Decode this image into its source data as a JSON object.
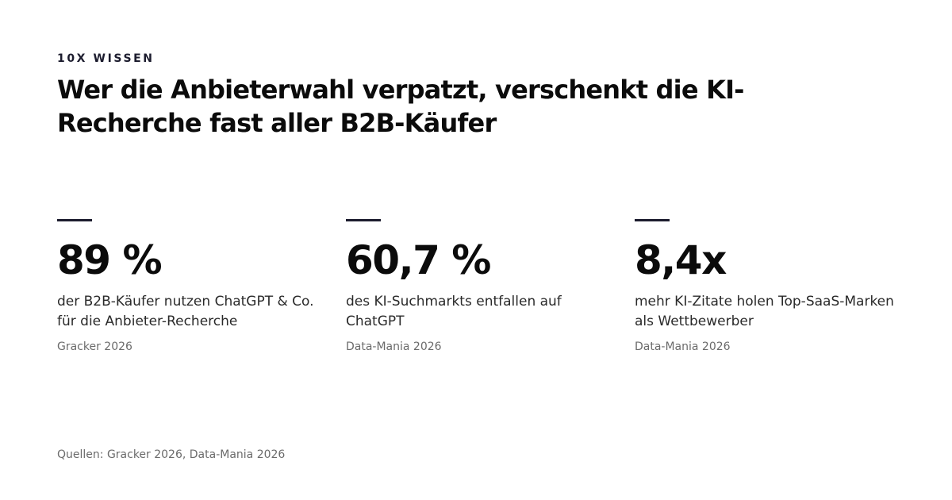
{
  "header": {
    "eyebrow": "10X WISSEN",
    "title": "Wer die Anbieterwahl verpatzt, verschenkt die KI-Recherche fast aller B2B-Käufer"
  },
  "stats": [
    {
      "value": "89 %",
      "description": "der B2B-Käufer nutzen ChatGPT & Co. für die Anbieter-Recherche",
      "source": "Gracker 2026"
    },
    {
      "value": "60,7 %",
      "description": "des KI-Suchmarkts entfallen auf ChatGPT",
      "source": "Data-Mania 2026"
    },
    {
      "value": "8,4x",
      "description": "mehr KI-Zitate holen Top-SaaS-Marken als Wettbewerber",
      "source": "Data-Mania 2026"
    }
  ],
  "footer": {
    "sources": "Quellen: Gracker 2026, Data-Mania 2026"
  },
  "colors": {
    "background": "#ffffff",
    "text": "#0b0b0b",
    "accent_rule": "#1c1c2e",
    "muted": "#6b6b6b"
  }
}
